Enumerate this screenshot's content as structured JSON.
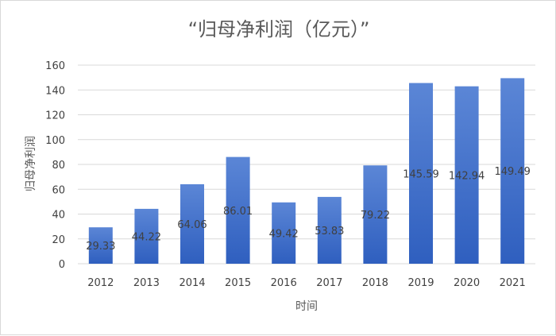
{
  "chart_data": {
    "type": "bar",
    "title": "“归母净利润（亿元）”",
    "xlabel": "时间",
    "ylabel": "归母净利润",
    "categories": [
      "2012",
      "2013",
      "2014",
      "2015",
      "2016",
      "2017",
      "2018",
      "2019",
      "2020",
      "2021"
    ],
    "values": [
      29.33,
      44.22,
      64.06,
      86.01,
      49.42,
      53.83,
      79.22,
      145.59,
      142.94,
      149.49
    ],
    "ylim": [
      0,
      160
    ],
    "yticks": [
      0,
      20,
      40,
      60,
      80,
      100,
      120,
      140,
      160
    ],
    "grid": true,
    "legend": "none",
    "colors": {
      "bar_top": "#5b86d6",
      "bar_bottom": "#2f5fbf",
      "grid": "#d9d9d9"
    }
  }
}
